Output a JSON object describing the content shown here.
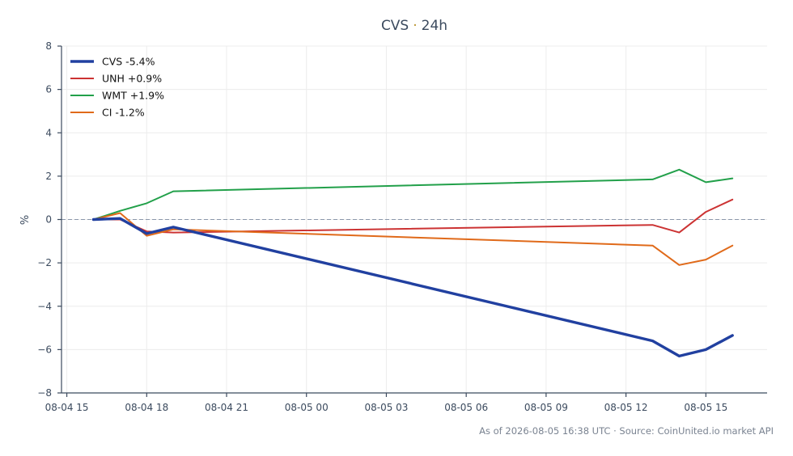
{
  "chart_data": {
    "type": "line",
    "title": "CVS",
    "title_separator": "·",
    "title_suffix": "24h",
    "ylabel": "%",
    "ylim": [
      -8,
      8
    ],
    "yticks": [
      -8,
      -6,
      -4,
      -2,
      0,
      2,
      4,
      6,
      8
    ],
    "ytick_labels": [
      "−8",
      "−6",
      "−4",
      "−2",
      "0",
      "2",
      "4",
      "6",
      "8"
    ],
    "xlim": [
      "2026-08-04 14:48",
      "2026-08-05 17:18"
    ],
    "xticks": [
      "2026-08-04 15:00",
      "2026-08-04 18:00",
      "2026-08-04 21:00",
      "2026-08-05 00:00",
      "2026-08-05 03:00",
      "2026-08-05 06:00",
      "2026-08-05 09:00",
      "2026-08-05 12:00",
      "2026-08-05 15:00"
    ],
    "xtick_labels": [
      "08-04 15",
      "08-04 18",
      "08-04 21",
      "08-05 00",
      "08-05 03",
      "08-05 06",
      "08-05 09",
      "08-05 12",
      "08-05 15"
    ],
    "x": [
      "2026-08-04 16:00",
      "2026-08-04 17:00",
      "2026-08-04 18:00",
      "2026-08-04 19:00",
      "2026-08-05 13:00",
      "2026-08-05 14:00",
      "2026-08-05 15:00",
      "2026-08-05 16:00"
    ],
    "baseline": 0,
    "grid": true,
    "legend_position": "top-left",
    "series": [
      {
        "name": "CVS -5.4%",
        "color": "#2140a0",
        "emphasis": true,
        "values": [
          0.0,
          0.05,
          -0.65,
          -0.35,
          -5.6,
          -6.3,
          -6.0,
          -5.35
        ]
      },
      {
        "name": "UNH +0.9%",
        "color": "#cc3333",
        "values": [
          0.0,
          0.0,
          -0.55,
          -0.6,
          -0.25,
          -0.6,
          0.35,
          0.92
        ]
      },
      {
        "name": "WMT +1.9%",
        "color": "#22a04a",
        "values": [
          0.0,
          0.4,
          0.75,
          1.3,
          1.85,
          2.3,
          1.72,
          1.9
        ]
      },
      {
        "name": "CI -1.2%",
        "color": "#e06a1a",
        "values": [
          0.0,
          0.3,
          -0.75,
          -0.45,
          -1.2,
          -2.1,
          -1.85,
          -1.2
        ]
      }
    ]
  },
  "footer": "As of 2026-08-05 16:38 UTC · Source: CoinUnited.io market API"
}
